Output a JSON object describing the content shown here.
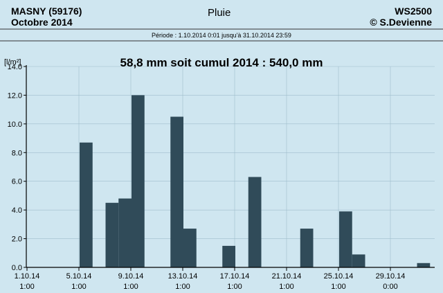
{
  "header": {
    "station": "MASNY (59176)",
    "month": "Octobre  2014",
    "title": "Pluie",
    "device": "WS2500",
    "copyright": "© S.Devienne",
    "period": "Période :  1.10.2014    0:01    jusqu'à 31.10.2014    23:59"
  },
  "colors": {
    "background": "#cfe6f0",
    "bar": "#304b59",
    "grid": "#9fbdcc"
  },
  "chart_data": {
    "type": "bar",
    "title": "58,8 mm  soit cumul 2014 : 540,0 mm",
    "ylabel": "[l/m²]",
    "ylim": [
      0,
      14
    ],
    "y_ticks": [
      "0.0",
      "2.0",
      "4.0",
      "6.0",
      "8.0",
      "10.0",
      "12.0",
      "14.0"
    ],
    "x_ticks": [
      {
        "day": 1,
        "date": "1.10.14",
        "time": "1:00"
      },
      {
        "day": 5,
        "date": "5.10.14",
        "time": "1:00"
      },
      {
        "day": 9,
        "date": "9.10.14",
        "time": "1:00"
      },
      {
        "day": 13,
        "date": "13.10.14",
        "time": "1:00"
      },
      {
        "day": 17,
        "date": "17.10.14",
        "time": "1:00"
      },
      {
        "day": 21,
        "date": "21.10.14",
        "time": "1:00"
      },
      {
        "day": 25,
        "date": "25.10.14",
        "time": "1:00"
      },
      {
        "day": 29,
        "date": "29.10.14",
        "time": "0:00"
      }
    ],
    "categories": [
      "1",
      "2",
      "3",
      "4",
      "5",
      "6",
      "7",
      "8",
      "9",
      "10",
      "11",
      "12",
      "13",
      "14",
      "15",
      "16",
      "17",
      "18",
      "19",
      "20",
      "21",
      "22",
      "23",
      "24",
      "25",
      "26",
      "27",
      "28",
      "29",
      "30",
      "31"
    ],
    "values": [
      0,
      0,
      0,
      0,
      8.7,
      0,
      4.5,
      4.8,
      12.0,
      0,
      0,
      10.5,
      2.7,
      0,
      0,
      1.5,
      0,
      6.3,
      0,
      0,
      0,
      2.7,
      0,
      0,
      3.9,
      0.9,
      0,
      0,
      0,
      0,
      0.3
    ],
    "grid": true
  }
}
